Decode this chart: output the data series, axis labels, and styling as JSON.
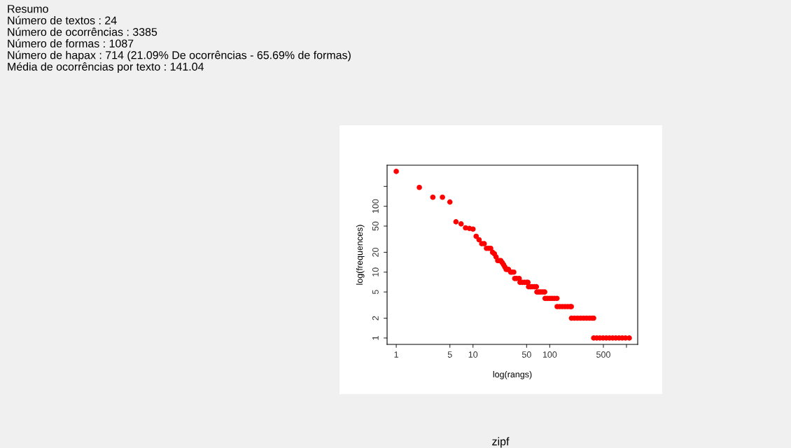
{
  "chart_data": {
    "type": "scatter",
    "xlabel": "log(rangs)",
    "ylabel": "log(frequences)",
    "annotations": [
      "Resumo",
      "Número de textos : 24",
      "Número de ocorrências : 3385",
      "Número de formas : 1087",
      "Número de hapax : 714 (21.09% De ocorrências - 65.69% de formas)",
      "Média de ocorrências por texto : 141.04",
      "zipf"
    ],
    "log": "xy",
    "grid": false,
    "legend": false,
    "marker": "circle",
    "xlim": [
      0.76,
      1400
    ],
    "ylim": [
      0.8,
      420
    ],
    "xticks": [
      1,
      5,
      10,
      50,
      100,
      500,
      {
        "value": 1000,
        "label": null
      }
    ],
    "yticks": [
      1,
      2,
      5,
      10,
      20,
      50,
      100,
      {
        "value": 200,
        "label": null
      }
    ],
    "series": [
      {
        "color": "#ff0000",
        "x": [
          1,
          2,
          3,
          4,
          5,
          6,
          7,
          8,
          9,
          10,
          11,
          12,
          13,
          14,
          15,
          16,
          17,
          18,
          19,
          20,
          21,
          22,
          23,
          24,
          25,
          26,
          27,
          28,
          29,
          31,
          32,
          34,
          35,
          37,
          40,
          41,
          44,
          47,
          50,
          52,
          53,
          56,
          59,
          63,
          67,
          68,
          72,
          76,
          81,
          86,
          87,
          93,
          100,
          107,
          115,
          124,
          125,
          135,
          146,
          158,
          171,
          185,
          191,
          192,
          210,
          230,
          252,
          276,
          302,
          330,
          355,
          373,
          374,
          410,
          450,
          495,
          545,
          600,
          660,
          725,
          800,
          880,
          970,
          1087
        ],
        "values": [
          338,
          193,
          137,
          137,
          116,
          58,
          54,
          47,
          46,
          45,
          35,
          31,
          27,
          27,
          23,
          23,
          23,
          20,
          19,
          17,
          15,
          15,
          15,
          14,
          13,
          12,
          11,
          11,
          11,
          10,
          10,
          10,
          8,
          8,
          8,
          7,
          7,
          7,
          7,
          7,
          6,
          6,
          6,
          6,
          6,
          5,
          5,
          5,
          5,
          5,
          4,
          4,
          4,
          4,
          4,
          4,
          3,
          3,
          3,
          3,
          3,
          3,
          3,
          2,
          2,
          2,
          2,
          2,
          2,
          2,
          2,
          2,
          1,
          1,
          1,
          1,
          1,
          1,
          1,
          1,
          1,
          1,
          1,
          1
        ]
      }
    ]
  }
}
